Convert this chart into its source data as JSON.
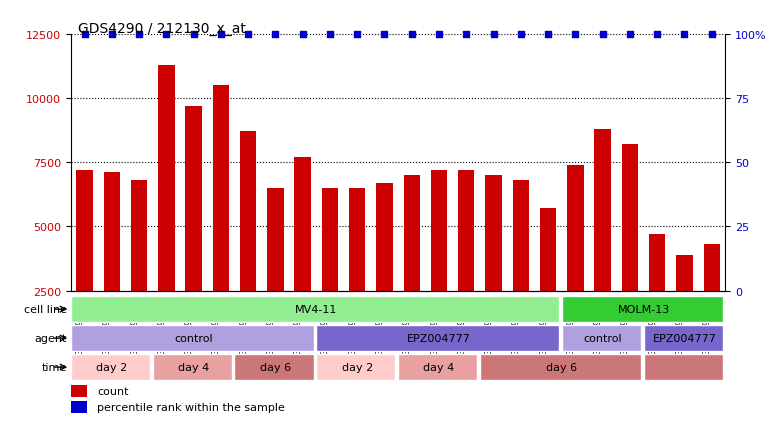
{
  "title": "GDS4290 / 212130_x_at",
  "samples": [
    "GSM739151",
    "GSM739152",
    "GSM739153",
    "GSM739157",
    "GSM739158",
    "GSM739159",
    "GSM739163",
    "GSM739164",
    "GSM739165",
    "GSM739148",
    "GSM739149",
    "GSM739150",
    "GSM739154",
    "GSM739155",
    "GSM739156",
    "GSM739160",
    "GSM739161",
    "GSM739162",
    "GSM739169",
    "GSM739170",
    "GSM739171",
    "GSM739166",
    "GSM739167",
    "GSM739168"
  ],
  "counts": [
    7200,
    7100,
    6800,
    11300,
    9700,
    10500,
    8700,
    6500,
    7700,
    6500,
    6500,
    6700,
    7000,
    7200,
    7200,
    7000,
    6800,
    5700,
    7400,
    8800,
    8200,
    4700,
    3900,
    4300
  ],
  "percentile": [
    100,
    100,
    100,
    100,
    100,
    100,
    100,
    100,
    100,
    100,
    100,
    100,
    100,
    100,
    100,
    100,
    100,
    100,
    100,
    100,
    100,
    100,
    100,
    100
  ],
  "bar_color": "#cc0000",
  "dot_color": "#0000cc",
  "ylim_left": [
    2500,
    12500
  ],
  "ylim_right": [
    0,
    100
  ],
  "yticks_left": [
    2500,
    5000,
    7500,
    10000,
    12500
  ],
  "yticks_right": [
    0,
    25,
    50,
    75,
    100
  ],
  "cell_line_row": {
    "MV4-11": {
      "start": 0,
      "end": 18,
      "color": "#90ee90"
    },
    "MOLM-13": {
      "start": 18,
      "end": 24,
      "color": "#00cc00"
    }
  },
  "agent_row": {
    "control_mv4": {
      "start": 0,
      "end": 9,
      "label": "control",
      "color": "#b0a0e0"
    },
    "EPZ004777_mv4": {
      "start": 9,
      "end": 18,
      "label": "EPZ004777",
      "color": "#6655cc"
    },
    "control_molm": {
      "start": 18,
      "end": 21,
      "label": "control",
      "color": "#b0a0e0"
    },
    "EPZ004777_molm": {
      "start": 21,
      "end": 24,
      "label": "EPZ004777",
      "color": "#6655cc"
    }
  },
  "time_row": [
    {
      "start": 0,
      "end": 3,
      "label": "day 2",
      "color": "#ffcccc"
    },
    {
      "start": 3,
      "end": 6,
      "label": "day 4",
      "color": "#e8a0a0"
    },
    {
      "start": 6,
      "end": 9,
      "label": "day 6",
      "color": "#cc7777"
    },
    {
      "start": 9,
      "end": 12,
      "label": "day 2",
      "color": "#ffcccc"
    },
    {
      "start": 12,
      "end": 15,
      "label": "day 4",
      "color": "#e8a0a0"
    },
    {
      "start": 15,
      "end": 21,
      "label": "day 6",
      "color": "#cc7777"
    },
    {
      "start": 21,
      "end": 24,
      "label": "",
      "color": "#cc7777"
    }
  ],
  "legend_count_color": "#cc0000",
  "legend_dot_color": "#0000cc",
  "bg_color": "#ffffff",
  "grid_color": "#000000",
  "left_label_color": "#cc0000",
  "right_label_color": "#0000cc"
}
